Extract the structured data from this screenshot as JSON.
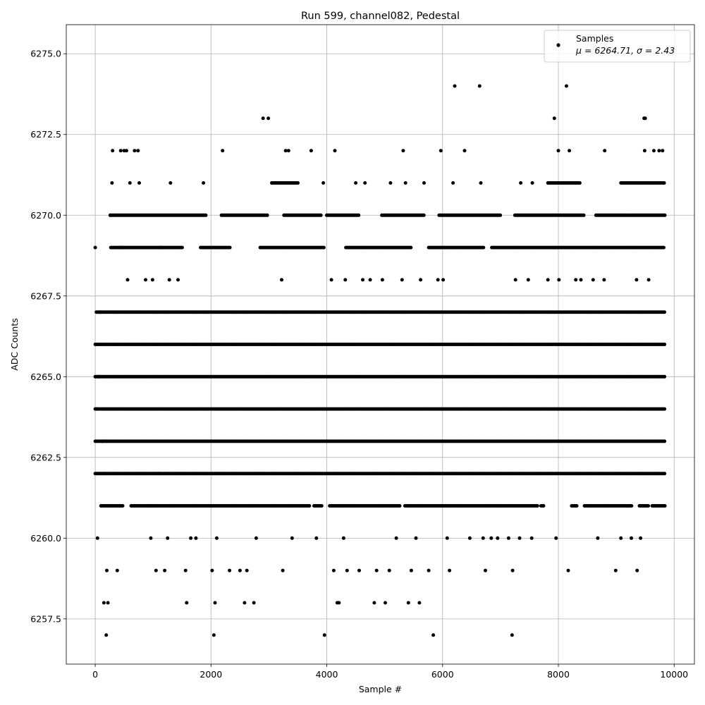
{
  "chart_data": {
    "type": "scatter",
    "title": "Run 599, channel082, Pedestal",
    "xlabel": "Sample #",
    "ylabel": "ADC Counts",
    "xlim": [
      -500,
      10350
    ],
    "ylim": [
      6256.1,
      6275.9
    ],
    "xticks": [
      0,
      2000,
      4000,
      6000,
      8000,
      10000
    ],
    "yticks": [
      6257.5,
      6260.0,
      6262.5,
      6265.0,
      6267.5,
      6270.0,
      6272.5,
      6275.0
    ],
    "xtick_labels": [
      "0",
      "2000",
      "4000",
      "6000",
      "8000",
      "10000"
    ],
    "ytick_labels": [
      "6257.5",
      "6260.0",
      "6262.5",
      "6265.0",
      "6267.5",
      "6270.0",
      "6272.5",
      "6275.0"
    ],
    "grid": true,
    "marker_color": "#000000",
    "legend": {
      "location": "upper right",
      "entries": [
        {
          "label": "Samples",
          "stats": "μ = 6264.71, σ = 2.43"
        }
      ]
    },
    "series": [
      {
        "name": "Samples",
        "points": [
          [
            0,
            6269
          ],
          [
            10,
            6266
          ],
          [
            20,
            6264
          ],
          [
            40,
            6260
          ],
          [
            60,
            6265
          ],
          [
            80,
            6267
          ],
          [
            100,
            6261
          ],
          [
            120,
            6263
          ],
          [
            150,
            6258
          ],
          [
            170,
            6262
          ],
          [
            190,
            6257
          ],
          [
            200,
            6259
          ],
          [
            220,
            6258
          ],
          [
            260,
            6270
          ],
          [
            290,
            6271
          ],
          [
            300,
            6272
          ],
          [
            380,
            6259
          ],
          [
            420,
            6261
          ],
          [
            440,
            6272
          ],
          [
            460,
            6269
          ],
          [
            500,
            6272
          ],
          [
            540,
            6272
          ],
          [
            560,
            6268
          ],
          [
            600,
            6271
          ],
          [
            680,
            6272
          ],
          [
            740,
            6272
          ],
          [
            760,
            6271
          ],
          [
            870,
            6268
          ],
          [
            920,
            6261
          ],
          [
            960,
            6260
          ],
          [
            990,
            6268
          ],
          [
            1050,
            6259
          ],
          [
            1090,
            6262
          ],
          [
            1130,
            6269
          ],
          [
            1200,
            6259
          ],
          [
            1250,
            6260
          ],
          [
            1280,
            6268
          ],
          [
            1300,
            6271
          ],
          [
            1430,
            6268
          ],
          [
            1560,
            6259
          ],
          [
            1580,
            6258
          ],
          [
            1650,
            6260
          ],
          [
            1740,
            6260
          ],
          [
            1870,
            6271
          ],
          [
            2020,
            6259
          ],
          [
            2050,
            6257
          ],
          [
            2070,
            6258
          ],
          [
            2100,
            6260
          ],
          [
            2200,
            6272
          ],
          [
            2320,
            6259
          ],
          [
            2500,
            6259
          ],
          [
            2580,
            6258
          ],
          [
            2620,
            6259
          ],
          [
            2740,
            6258
          ],
          [
            2780,
            6260
          ],
          [
            2900,
            6273
          ],
          [
            2990,
            6273
          ],
          [
            3050,
            6271
          ],
          [
            3220,
            6268
          ],
          [
            3240,
            6259
          ],
          [
            3290,
            6272
          ],
          [
            3340,
            6272
          ],
          [
            3400,
            6260
          ],
          [
            3730,
            6272
          ],
          [
            3820,
            6260
          ],
          [
            3940,
            6271
          ],
          [
            3960,
            6257
          ],
          [
            4080,
            6268
          ],
          [
            4120,
            6259
          ],
          [
            4140,
            6272
          ],
          [
            4180,
            6258
          ],
          [
            4210,
            6258
          ],
          [
            4290,
            6260
          ],
          [
            4320,
            6268
          ],
          [
            4350,
            6259
          ],
          [
            4500,
            6271
          ],
          [
            4560,
            6259
          ],
          [
            4620,
            6268
          ],
          [
            4660,
            6271
          ],
          [
            4750,
            6268
          ],
          [
            4820,
            6258
          ],
          [
            4860,
            6259
          ],
          [
            4960,
            6268
          ],
          [
            5010,
            6258
          ],
          [
            5080,
            6259
          ],
          [
            5100,
            6271
          ],
          [
            5200,
            6260
          ],
          [
            5300,
            6268
          ],
          [
            5320,
            6272
          ],
          [
            5360,
            6271
          ],
          [
            5410,
            6258
          ],
          [
            5460,
            6259
          ],
          [
            5540,
            6260
          ],
          [
            5600,
            6258
          ],
          [
            5620,
            6268
          ],
          [
            5680,
            6271
          ],
          [
            5760,
            6259
          ],
          [
            5840,
            6257
          ],
          [
            5920,
            6268
          ],
          [
            5970,
            6272
          ],
          [
            6010,
            6268
          ],
          [
            6080,
            6260
          ],
          [
            6120,
            6259
          ],
          [
            6180,
            6271
          ],
          [
            6210,
            6274
          ],
          [
            6380,
            6272
          ],
          [
            6470,
            6260
          ],
          [
            6640,
            6274
          ],
          [
            6660,
            6271
          ],
          [
            6700,
            6260
          ],
          [
            6740,
            6259
          ],
          [
            6840,
            6260
          ],
          [
            6950,
            6260
          ],
          [
            7140,
            6260
          ],
          [
            7200,
            6257
          ],
          [
            7210,
            6259
          ],
          [
            7260,
            6268
          ],
          [
            7330,
            6260
          ],
          [
            7350,
            6271
          ],
          [
            7480,
            6268
          ],
          [
            7540,
            6260
          ],
          [
            7550,
            6271
          ],
          [
            7820,
            6268
          ],
          [
            7930,
            6273
          ],
          [
            7960,
            6260
          ],
          [
            8000,
            6272
          ],
          [
            8010,
            6268
          ],
          [
            8140,
            6274
          ],
          [
            8170,
            6259
          ],
          [
            8190,
            6272
          ],
          [
            8300,
            6268
          ],
          [
            8390,
            6268
          ],
          [
            8600,
            6268
          ],
          [
            8680,
            6260
          ],
          [
            8790,
            6268
          ],
          [
            8800,
            6272
          ],
          [
            8990,
            6259
          ],
          [
            9080,
            6260
          ],
          [
            9260,
            6260
          ],
          [
            9350,
            6268
          ],
          [
            9360,
            6259
          ],
          [
            9420,
            6260
          ],
          [
            9480,
            6273
          ],
          [
            9490,
            6272
          ],
          [
            9500,
            6273
          ],
          [
            9560,
            6268
          ],
          [
            9650,
            6272
          ],
          [
            9740,
            6272
          ],
          [
            9800,
            6272
          ]
        ],
        "level_bands": [
          {
            "y": 6261,
            "coverage": [
              [
                100,
                480
              ],
              [
                620,
                3700
              ],
              [
                3780,
                3920
              ],
              [
                4050,
                5280
              ],
              [
                5350,
                7650
              ],
              [
                7700,
                7760
              ],
              [
                8230,
                8330
              ],
              [
                8450,
                9280
              ],
              [
                9400,
                9560
              ],
              [
                9620,
                9840
              ]
            ]
          },
          {
            "y": 6262,
            "coverage": [
              [
                0,
                9840
              ]
            ]
          },
          {
            "y": 6263,
            "coverage": [
              [
                0,
                9840
              ]
            ]
          },
          {
            "y": 6264,
            "coverage": [
              [
                0,
                9840
              ]
            ]
          },
          {
            "y": 6265,
            "coverage": [
              [
                0,
                9840
              ]
            ]
          },
          {
            "y": 6266,
            "coverage": [
              [
                0,
                9840
              ]
            ]
          },
          {
            "y": 6267,
            "coverage": [
              [
                20,
                9840
              ]
            ]
          },
          {
            "y": 6269,
            "coverage": [
              [
                270,
                1520
              ],
              [
                1820,
                2330
              ],
              [
                2850,
                3950
              ],
              [
                4330,
                5460
              ],
              [
                5760,
                6710
              ],
              [
                6850,
                9840
              ]
            ]
          },
          {
            "y": 6270,
            "coverage": [
              [
                260,
                1920
              ],
              [
                2180,
                2980
              ],
              [
                3260,
                3900
              ],
              [
                4000,
                4570
              ],
              [
                4950,
                5680
              ],
              [
                5940,
                7000
              ],
              [
                7250,
                8440
              ],
              [
                8650,
                9840
              ]
            ]
          },
          {
            "y": 6271,
            "coverage": [
              [
                3060,
                3500
              ],
              [
                7820,
                8390
              ],
              [
                9080,
                9840
              ]
            ]
          }
        ]
      }
    ]
  }
}
